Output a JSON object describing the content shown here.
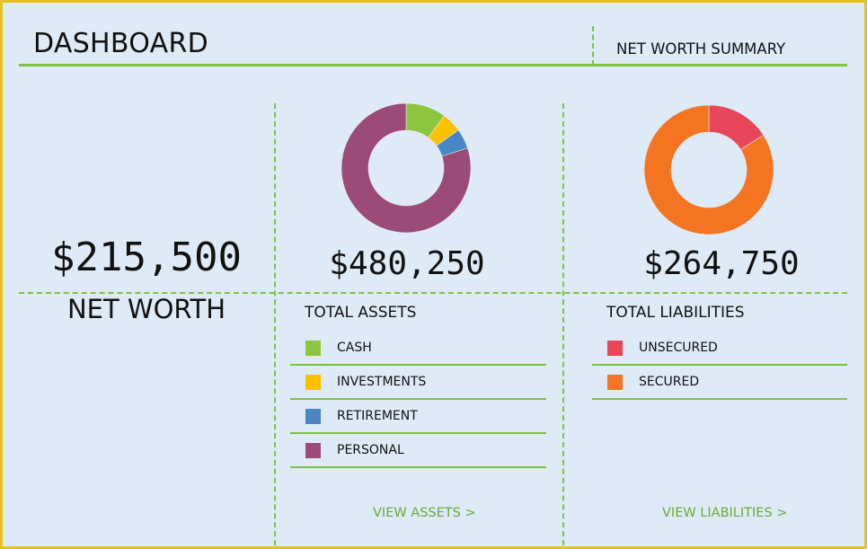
{
  "header": {
    "title": "DASHBOARD",
    "subtitle": "NET WORTH SUMMARY"
  },
  "net_worth": {
    "value": "$215,500",
    "label": "NET WORTH"
  },
  "assets": {
    "total": "$480,250",
    "heading": "TOTAL ASSETS",
    "link": "VIEW ASSETS >"
  },
  "liabilities": {
    "total": "$264,750",
    "heading": "TOTAL LIABILITIES",
    "link": "VIEW LIABILITIES >"
  },
  "chart_data": [
    {
      "type": "pie",
      "title": "TOTAL ASSETS",
      "donut": true,
      "categories": [
        "CASH",
        "INVESTMENTS",
        "RETIREMENT",
        "PERSONAL"
      ],
      "values": [
        10,
        5,
        5,
        80
      ],
      "colors": [
        "#8cc63f",
        "#ffc000",
        "#4a86c5",
        "#9c4a78"
      ]
    },
    {
      "type": "pie",
      "title": "TOTAL LIABILITIES",
      "donut": true,
      "categories": [
        "UNSECURED",
        "SECURED"
      ],
      "values": [
        16,
        84
      ],
      "colors": [
        "#e8475a",
        "#f47421"
      ]
    }
  ]
}
